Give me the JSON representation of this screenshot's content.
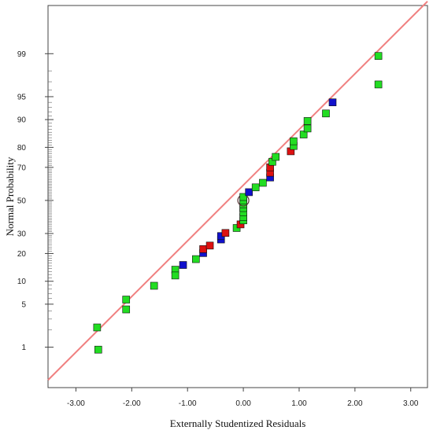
{
  "chart_data": {
    "type": "scatter",
    "title": "",
    "xlabel": "Externally Studentized Residuals",
    "ylabel": "Normal Probability",
    "xlim": [
      -3.5,
      3.3
    ],
    "ylim_probability_percent": [
      0.15,
      99.9
    ],
    "y_scale": "normal-probability",
    "x_ticks": [
      -3.0,
      -2.0,
      -1.0,
      0.0,
      1.0,
      2.0,
      3.0
    ],
    "x_tick_labels": [
      "-3.00",
      "-2.00",
      "-1.00",
      "0.00",
      "1.00",
      "2.00",
      "3.00"
    ],
    "y_ticks": [
      1,
      5,
      10,
      20,
      30,
      50,
      70,
      80,
      90,
      95,
      99
    ],
    "y_tick_labels": [
      "1",
      "5",
      "10",
      "20",
      "30",
      "50",
      "70",
      "80",
      "90",
      "95",
      "99"
    ],
    "grid": false,
    "reference_line": {
      "color": "#f08080",
      "points": [
        {
          "x": -3.5,
          "p": 0.22
        },
        {
          "x": 3.3,
          "p": 99.92
        }
      ]
    },
    "marker_colors": {
      "green": "#22dd22",
      "red": "#dd1111",
      "blue": "#1111cc"
    },
    "points": [
      {
        "x": -2.62,
        "p": 2.2,
        "color": "green"
      },
      {
        "x": -2.6,
        "p": 0.9,
        "color": "green"
      },
      {
        "x": -2.1,
        "p": 5.8,
        "color": "green"
      },
      {
        "x": -2.1,
        "p": 4.2,
        "color": "green"
      },
      {
        "x": -1.6,
        "p": 8.8,
        "color": "green"
      },
      {
        "x": -1.22,
        "p": 13.6,
        "color": "green"
      },
      {
        "x": -1.22,
        "p": 11.7,
        "color": "green"
      },
      {
        "x": -1.08,
        "p": 15.3,
        "color": "blue"
      },
      {
        "x": -0.85,
        "p": 17.6,
        "color": "green"
      },
      {
        "x": -0.72,
        "p": 20.2,
        "color": "blue"
      },
      {
        "x": -0.72,
        "p": 22.0,
        "color": "red"
      },
      {
        "x": -0.6,
        "p": 23.7,
        "color": "red"
      },
      {
        "x": -0.4,
        "p": 26.8,
        "color": "blue"
      },
      {
        "x": -0.4,
        "p": 28.6,
        "color": "blue"
      },
      {
        "x": -0.32,
        "p": 30.3,
        "color": "red"
      },
      {
        "x": -0.12,
        "p": 33.1,
        "color": "green"
      },
      {
        "x": -0.05,
        "p": 35.2,
        "color": "red"
      },
      {
        "x": 0.0,
        "p": 37.6,
        "color": "green"
      },
      {
        "x": 0.0,
        "p": 39.6,
        "color": "green"
      },
      {
        "x": 0.0,
        "p": 42.6,
        "color": "green"
      },
      {
        "x": 0.0,
        "p": 45.2,
        "color": "green"
      },
      {
        "x": 0.0,
        "p": 47.6,
        "color": "green"
      },
      {
        "x": 0.0,
        "p": 50.0,
        "color": "green",
        "highlight": true
      },
      {
        "x": 0.0,
        "p": 52.2,
        "color": "green"
      },
      {
        "x": 0.1,
        "p": 55.2,
        "color": "blue"
      },
      {
        "x": 0.22,
        "p": 58.2,
        "color": "green"
      },
      {
        "x": 0.35,
        "p": 61.0,
        "color": "green"
      },
      {
        "x": 0.48,
        "p": 64.2,
        "color": "blue"
      },
      {
        "x": 0.48,
        "p": 67.0,
        "color": "red"
      },
      {
        "x": 0.48,
        "p": 70.0,
        "color": "red"
      },
      {
        "x": 0.52,
        "p": 73.0,
        "color": "green"
      },
      {
        "x": 0.58,
        "p": 75.5,
        "color": "green"
      },
      {
        "x": 0.85,
        "p": 78.2,
        "color": "red"
      },
      {
        "x": 0.9,
        "p": 80.6,
        "color": "green"
      },
      {
        "x": 0.9,
        "p": 82.6,
        "color": "green"
      },
      {
        "x": 1.08,
        "p": 85.2,
        "color": "green"
      },
      {
        "x": 1.15,
        "p": 87.3,
        "color": "green"
      },
      {
        "x": 1.15,
        "p": 89.6,
        "color": "green"
      },
      {
        "x": 1.48,
        "p": 91.6,
        "color": "green"
      },
      {
        "x": 1.6,
        "p": 94.0,
        "color": "blue"
      },
      {
        "x": 2.42,
        "p": 96.7,
        "color": "green"
      },
      {
        "x": 2.42,
        "p": 98.9,
        "color": "green"
      }
    ]
  }
}
